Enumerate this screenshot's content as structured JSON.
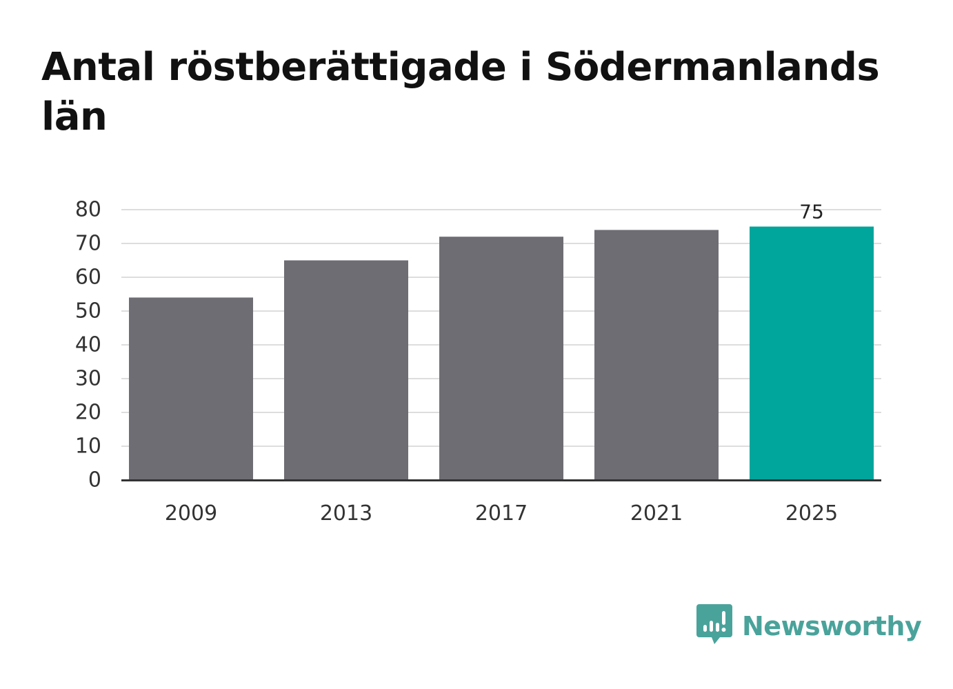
{
  "title": "Antal röstberättigade i Södermanlands län",
  "brand": {
    "name": "Newsworthy",
    "color": "#4aa39b",
    "icon": "bar-chart-speech-bubble-icon"
  },
  "colors": {
    "bar_default": "#6e6d74",
    "bar_highlight": "#00a59c",
    "grid": "#dddddd",
    "axis": "#333333"
  },
  "chart_data": {
    "type": "bar",
    "categories": [
      "2009",
      "2013",
      "2017",
      "2021",
      "2025"
    ],
    "values": [
      54,
      65,
      72,
      74,
      75
    ],
    "highlight_index": 4,
    "data_labels": [
      "",
      "",
      "",
      "",
      "75"
    ],
    "title": "Antal röstberättigade i Södermanlands län",
    "xlabel": "",
    "ylabel": "",
    "ylim": [
      0,
      80
    ],
    "yticks": [
      0,
      10,
      20,
      30,
      40,
      50,
      60,
      70,
      80
    ],
    "grid": true,
    "legend": "none"
  }
}
